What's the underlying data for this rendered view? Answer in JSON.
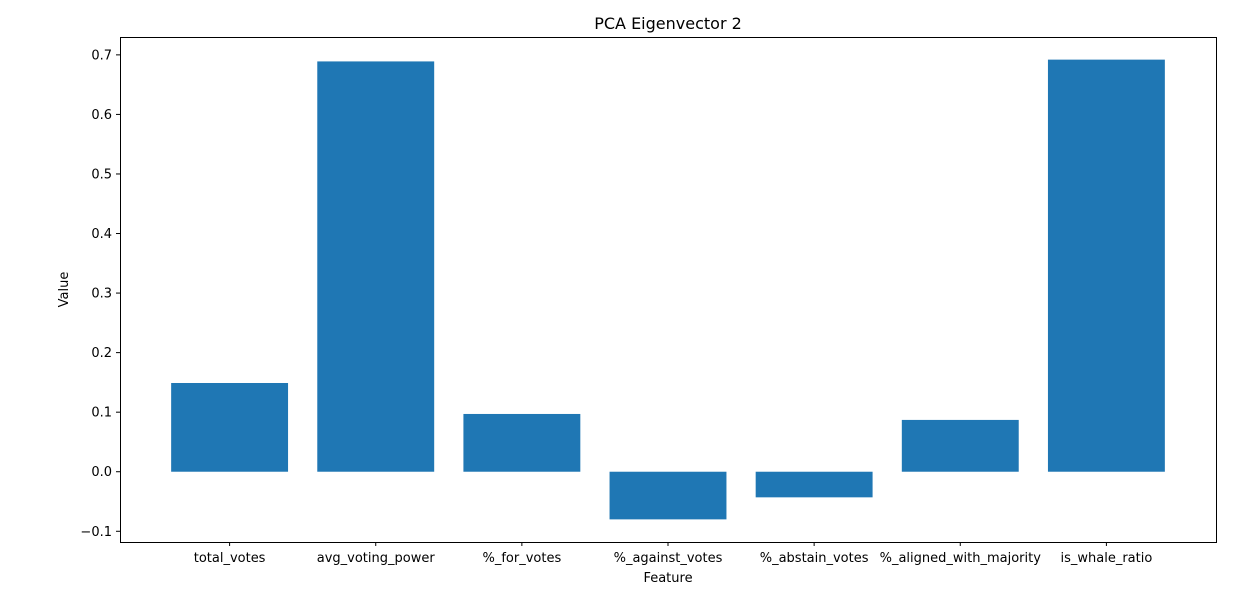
{
  "chart_data": {
    "type": "bar",
    "title": "PCA Eigenvector 2",
    "xlabel": "Feature",
    "ylabel": "Value",
    "categories": [
      "total_votes",
      "avg_voting_power",
      "%_for_votes",
      "%_against_votes",
      "%_abstain_votes",
      "%_aligned_with_majority",
      "is_whale_ratio"
    ],
    "values": [
      0.149,
      0.689,
      0.097,
      -0.08,
      -0.043,
      0.087,
      0.692
    ],
    "ylim": [
      -0.118,
      0.73
    ],
    "yticks": [
      -0.1,
      0.0,
      0.1,
      0.2,
      0.3,
      0.4,
      0.5,
      0.6,
      0.7
    ],
    "ytick_labels": [
      "−0.1",
      "0.0",
      "0.1",
      "0.2",
      "0.3",
      "0.4",
      "0.5",
      "0.6",
      "0.7"
    ],
    "bar_color": "#1f77b4",
    "grid": false,
    "legend": "none"
  }
}
